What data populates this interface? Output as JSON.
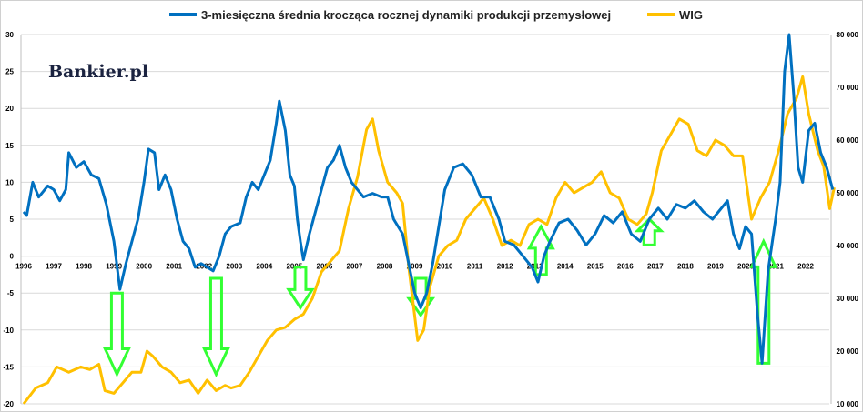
{
  "chart_data": {
    "type": "line",
    "logo": "Bankier.pl",
    "legend": [
      {
        "name": "3-miesięczna średnia krocząca rocznej dynamiki produkcji przemysłowej",
        "color": "#0070C0"
      },
      {
        "name": "WIG",
        "color": "#FFC000"
      }
    ],
    "legend_position": "top",
    "left_axis": {
      "ylim": [
        -20,
        30
      ],
      "ticks": [
        -20,
        -15,
        -10,
        -5,
        0,
        5,
        10,
        15,
        20,
        25,
        30
      ]
    },
    "right_axis": {
      "ylim": [
        10000,
        80000
      ],
      "ticks": [
        "10 000",
        "20 000",
        "30 000",
        "40 000",
        "50 000",
        "60 000",
        "70 000",
        "80 000"
      ]
    },
    "x_ticks": [
      "1996",
      "1997",
      "1998",
      "1999",
      "2000",
      "2001",
      "2002",
      "2003",
      "2004",
      "2005",
      "2006",
      "2007",
      "2008",
      "2009",
      "2010",
      "2011",
      "2012",
      "2013",
      "2014",
      "2015",
      "2016",
      "2017",
      "2018",
      "2019",
      "2020",
      "2021",
      "2022"
    ],
    "xlim": [
      1996,
      2023
    ],
    "series": [
      {
        "name": "production",
        "axis": "left",
        "color": "#0070C0",
        "points": [
          [
            1996,
            6
          ],
          [
            1996.1,
            5.5
          ],
          [
            1996.3,
            10
          ],
          [
            1996.5,
            8
          ],
          [
            1996.8,
            9.5
          ],
          [
            1997,
            9
          ],
          [
            1997.2,
            7.5
          ],
          [
            1997.4,
            9
          ],
          [
            1997.5,
            14
          ],
          [
            1997.75,
            12
          ],
          [
            1998,
            12.8
          ],
          [
            1998.25,
            11
          ],
          [
            1998.5,
            10.5
          ],
          [
            1998.75,
            7
          ],
          [
            1999,
            2
          ],
          [
            1999.2,
            -4.5
          ],
          [
            1999.4,
            -1
          ],
          [
            1999.6,
            2
          ],
          [
            1999.8,
            5
          ],
          [
            2000,
            10
          ],
          [
            2000.15,
            14.5
          ],
          [
            2000.35,
            14
          ],
          [
            2000.5,
            9
          ],
          [
            2000.7,
            11
          ],
          [
            2000.9,
            9
          ],
          [
            2001.1,
            5
          ],
          [
            2001.3,
            2
          ],
          [
            2001.5,
            1
          ],
          [
            2001.7,
            -1.5
          ],
          [
            2001.9,
            -1
          ],
          [
            2002.1,
            -1.5
          ],
          [
            2002.3,
            -2
          ],
          [
            2002.5,
            0
          ],
          [
            2002.7,
            3
          ],
          [
            2002.9,
            4
          ],
          [
            2003.2,
            4.5
          ],
          [
            2003.4,
            8
          ],
          [
            2003.6,
            10
          ],
          [
            2003.8,
            9
          ],
          [
            2004,
            11
          ],
          [
            2004.2,
            13
          ],
          [
            2004.4,
            18
          ],
          [
            2004.5,
            21
          ],
          [
            2004.7,
            17
          ],
          [
            2004.85,
            11
          ],
          [
            2005,
            9.5
          ],
          [
            2005.1,
            5
          ],
          [
            2005.2,
            2
          ],
          [
            2005.3,
            -0.5
          ],
          [
            2005.5,
            3
          ],
          [
            2005.7,
            6
          ],
          [
            2005.9,
            9
          ],
          [
            2006.1,
            12
          ],
          [
            2006.3,
            13
          ],
          [
            2006.5,
            15
          ],
          [
            2006.7,
            12
          ],
          [
            2006.9,
            10
          ],
          [
            2007.1,
            9
          ],
          [
            2007.3,
            8
          ],
          [
            2007.6,
            8.5
          ],
          [
            2007.9,
            8
          ],
          [
            2008.1,
            8
          ],
          [
            2008.3,
            5
          ],
          [
            2008.6,
            3
          ],
          [
            2008.8,
            -1
          ],
          [
            2009,
            -5
          ],
          [
            2009.2,
            -7
          ],
          [
            2009.4,
            -5
          ],
          [
            2009.6,
            -1
          ],
          [
            2009.8,
            4
          ],
          [
            2010,
            9
          ],
          [
            2010.3,
            12
          ],
          [
            2010.6,
            12.5
          ],
          [
            2010.9,
            11
          ],
          [
            2011.2,
            8
          ],
          [
            2011.5,
            8
          ],
          [
            2011.8,
            5
          ],
          [
            2012,
            2
          ],
          [
            2012.3,
            1.5
          ],
          [
            2012.6,
            0
          ],
          [
            2012.9,
            -1.5
          ],
          [
            2013.1,
            -3.5
          ],
          [
            2013.3,
            0
          ],
          [
            2013.5,
            2
          ],
          [
            2013.8,
            4.5
          ],
          [
            2014.1,
            5
          ],
          [
            2014.4,
            3.5
          ],
          [
            2014.7,
            1.5
          ],
          [
            2015,
            3
          ],
          [
            2015.3,
            5.5
          ],
          [
            2015.6,
            4.5
          ],
          [
            2015.9,
            6
          ],
          [
            2016.2,
            3
          ],
          [
            2016.5,
            2
          ],
          [
            2016.8,
            5
          ],
          [
            2017.1,
            6.5
          ],
          [
            2017.4,
            5
          ],
          [
            2017.7,
            7
          ],
          [
            2018,
            6.5
          ],
          [
            2018.3,
            7.5
          ],
          [
            2018.6,
            6
          ],
          [
            2018.9,
            5
          ],
          [
            2019.2,
            6.5
          ],
          [
            2019.4,
            7.5
          ],
          [
            2019.6,
            3
          ],
          [
            2019.8,
            1
          ],
          [
            2020,
            4
          ],
          [
            2020.2,
            3
          ],
          [
            2020.4,
            -8
          ],
          [
            2020.55,
            -14.5
          ],
          [
            2020.75,
            -2
          ],
          [
            2021,
            5
          ],
          [
            2021.15,
            10
          ],
          [
            2021.3,
            25
          ],
          [
            2021.45,
            30
          ],
          [
            2021.6,
            22
          ],
          [
            2021.75,
            12
          ],
          [
            2021.9,
            10
          ],
          [
            2022.1,
            17
          ],
          [
            2022.3,
            18
          ],
          [
            2022.5,
            14
          ],
          [
            2022.7,
            12
          ],
          [
            2022.9,
            9
          ]
        ]
      },
      {
        "name": "WIG",
        "axis": "right",
        "color": "#FFC000",
        "points": [
          [
            1996,
            10000
          ],
          [
            1996.4,
            13000
          ],
          [
            1996.8,
            14000
          ],
          [
            1997.1,
            17000
          ],
          [
            1997.5,
            16000
          ],
          [
            1997.9,
            17000
          ],
          [
            1998.2,
            16500
          ],
          [
            1998.5,
            17500
          ],
          [
            1998.7,
            12500
          ],
          [
            1999,
            12000
          ],
          [
            1999.3,
            14000
          ],
          [
            1999.6,
            16000
          ],
          [
            1999.9,
            16000
          ],
          [
            2000.1,
            20000
          ],
          [
            2000.3,
            19000
          ],
          [
            2000.6,
            17000
          ],
          [
            2000.9,
            16000
          ],
          [
            2001.2,
            14000
          ],
          [
            2001.5,
            14500
          ],
          [
            2001.8,
            12000
          ],
          [
            2002.1,
            14500
          ],
          [
            2002.4,
            12500
          ],
          [
            2002.7,
            13500
          ],
          [
            2002.9,
            13000
          ],
          [
            2003.2,
            13500
          ],
          [
            2003.5,
            16000
          ],
          [
            2003.8,
            19000
          ],
          [
            2004.1,
            22000
          ],
          [
            2004.4,
            24000
          ],
          [
            2004.7,
            24500
          ],
          [
            2005,
            26000
          ],
          [
            2005.3,
            27000
          ],
          [
            2005.6,
            30000
          ],
          [
            2005.9,
            35000
          ],
          [
            2006.2,
            37000
          ],
          [
            2006.5,
            39000
          ],
          [
            2006.8,
            47000
          ],
          [
            2007.1,
            53000
          ],
          [
            2007.4,
            62000
          ],
          [
            2007.6,
            64000
          ],
          [
            2007.8,
            58000
          ],
          [
            2008.1,
            52000
          ],
          [
            2008.4,
            50000
          ],
          [
            2008.6,
            48000
          ],
          [
            2008.8,
            36000
          ],
          [
            2009.1,
            22000
          ],
          [
            2009.3,
            24000
          ],
          [
            2009.5,
            32000
          ],
          [
            2009.8,
            38000
          ],
          [
            2010.1,
            40000
          ],
          [
            2010.4,
            41000
          ],
          [
            2010.7,
            45000
          ],
          [
            2011,
            47000
          ],
          [
            2011.3,
            49000
          ],
          [
            2011.6,
            45000
          ],
          [
            2011.9,
            40000
          ],
          [
            2012.2,
            41000
          ],
          [
            2012.5,
            40000
          ],
          [
            2012.8,
            44000
          ],
          [
            2013.1,
            45000
          ],
          [
            2013.4,
            44000
          ],
          [
            2013.7,
            49000
          ],
          [
            2014,
            52000
          ],
          [
            2014.3,
            50000
          ],
          [
            2014.6,
            51000
          ],
          [
            2014.9,
            52000
          ],
          [
            2015.2,
            54000
          ],
          [
            2015.5,
            50000
          ],
          [
            2015.8,
            49000
          ],
          [
            2016.1,
            45000
          ],
          [
            2016.4,
            44000
          ],
          [
            2016.7,
            46000
          ],
          [
            2016.9,
            50000
          ],
          [
            2017.2,
            58000
          ],
          [
            2017.5,
            61000
          ],
          [
            2017.8,
            64000
          ],
          [
            2018.1,
            63000
          ],
          [
            2018.4,
            58000
          ],
          [
            2018.7,
            57000
          ],
          [
            2019,
            60000
          ],
          [
            2019.3,
            59000
          ],
          [
            2019.6,
            57000
          ],
          [
            2019.9,
            57000
          ],
          [
            2020.2,
            45000
          ],
          [
            2020.5,
            49000
          ],
          [
            2020.8,
            52000
          ],
          [
            2021.1,
            58000
          ],
          [
            2021.4,
            65000
          ],
          [
            2021.7,
            68000
          ],
          [
            2021.9,
            72000
          ],
          [
            2022.1,
            65000
          ],
          [
            2022.4,
            58000
          ],
          [
            2022.6,
            55000
          ],
          [
            2022.8,
            47000
          ],
          [
            2022.95,
            51000
          ]
        ]
      }
    ],
    "annotations": [
      {
        "type": "arrow-down",
        "x": 1999.1,
        "from": -5,
        "to": -16
      },
      {
        "type": "arrow-down",
        "x": 2002.4,
        "from": -3,
        "to": -16
      },
      {
        "type": "arrow-down",
        "x": 2005.2,
        "from": -1.5,
        "to": -7
      },
      {
        "type": "arrow-down",
        "x": 2009.2,
        "from": -3,
        "to": -8
      },
      {
        "type": "arrow-up",
        "x": 2013.2,
        "from": -2.5,
        "to": 4
      },
      {
        "type": "arrow-up",
        "x": 2016.8,
        "from": 1.5,
        "to": 5
      },
      {
        "type": "arrow-up",
        "x": 2020.6,
        "from": -14.5,
        "to": 2
      }
    ]
  }
}
